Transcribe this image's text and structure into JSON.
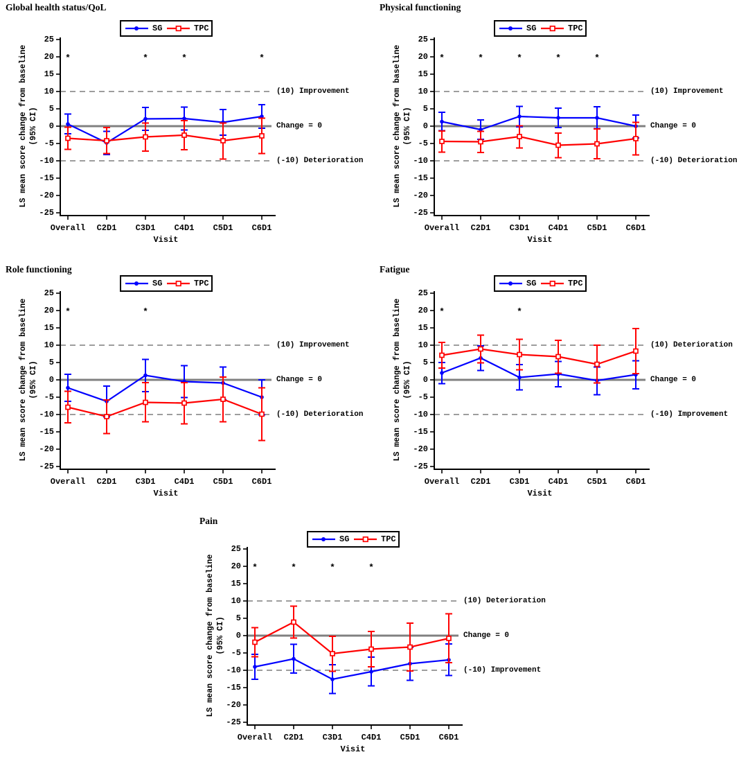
{
  "page": {
    "background": "#ffffff",
    "description_of_visible_content": "Five line charts of LS mean score change from baseline (95% CI) by visit"
  },
  "colors": {
    "sg": "#0000ff",
    "tpc": "#ff0000",
    "zero_line": "#808080",
    "reference_line": "#7d7d7d",
    "axis": "#000000",
    "significance": "#000000",
    "legend_border": "#000000"
  },
  "significance_marker": "*",
  "chart_data": [
    {
      "type": "line",
      "title": "Global health status/QoL",
      "xlabel": "Visit",
      "ylabel": "LS mean score change from baseline",
      "ylabel_line2": "(95% CI)",
      "ylim": [
        -25,
        25
      ],
      "y_ticks": [
        25,
        20,
        15,
        10,
        5,
        0,
        -5,
        -10,
        -15,
        -20,
        -25
      ],
      "categories": [
        "Overall",
        "C2D1",
        "C3D1",
        "C4D1",
        "C5D1",
        "C6D1"
      ],
      "annotations": {
        "upper": "(10) Improvement",
        "zero": "Change = 0",
        "lower": "(-10) Deterioration"
      },
      "reference_lines": {
        "upper_y": 10,
        "zero_y": 0,
        "lower_y": -10
      },
      "significant_at": [
        "Overall",
        "C3D1",
        "C4D1",
        "C6D1"
      ],
      "legend_position": "top-center",
      "series": [
        {
          "name": "SG",
          "color": "#0000ff",
          "marker": "filled-circle",
          "mean": [
            0.6,
            -4.8,
            2.1,
            2.2,
            1.1,
            2.8
          ],
          "ci_lower": [
            -2.2,
            -8.2,
            -1.2,
            -1.1,
            -2.6,
            -0.6
          ],
          "ci_upper": [
            3.5,
            -1.5,
            5.4,
            5.5,
            4.8,
            6.2
          ]
        },
        {
          "name": "TPC",
          "color": "#ff0000",
          "marker": "open-square",
          "mean": [
            -3.5,
            -4.2,
            -3.1,
            -2.6,
            -4.2,
            -2.8
          ],
          "ci_lower": [
            -6.7,
            -7.9,
            -7.2,
            -6.8,
            -9.5,
            -7.9
          ],
          "ci_upper": [
            -0.3,
            -0.4,
            0.9,
            1.6,
            0.9,
            2.3
          ]
        }
      ]
    },
    {
      "type": "line",
      "title": "Physical functioning",
      "xlabel": "Visit",
      "ylabel": "LS mean score change from baseline",
      "ylabel_line2": "(95% CI)",
      "ylim": [
        -25,
        25
      ],
      "y_ticks": [
        25,
        20,
        15,
        10,
        5,
        0,
        -5,
        -10,
        -15,
        -20,
        -25
      ],
      "categories": [
        "Overall",
        "C2D1",
        "C3D1",
        "C4D1",
        "C5D1",
        "C6D1"
      ],
      "annotations": {
        "upper": "(10) Improvement",
        "zero": "Change = 0",
        "lower": "(-10) Deterioration"
      },
      "reference_lines": {
        "upper_y": 10,
        "zero_y": 0,
        "lower_y": -10
      },
      "significant_at": [
        "Overall",
        "C2D1",
        "C3D1",
        "C4D1",
        "C5D1"
      ],
      "legend_position": "top-center",
      "series": [
        {
          "name": "SG",
          "color": "#0000ff",
          "marker": "filled-circle",
          "mean": [
            1.3,
            -1.0,
            2.8,
            2.4,
            2.4,
            0.0
          ],
          "ci_lower": [
            -1.3,
            -3.8,
            -0.2,
            -0.4,
            -0.7,
            -3.4
          ],
          "ci_upper": [
            4.0,
            1.8,
            5.7,
            5.2,
            5.6,
            3.2
          ]
        },
        {
          "name": "TPC",
          "color": "#ff0000",
          "marker": "open-square",
          "mean": [
            -4.4,
            -4.5,
            -3.0,
            -5.5,
            -5.1,
            -3.6
          ],
          "ci_lower": [
            -7.5,
            -7.6,
            -6.3,
            -9.1,
            -9.4,
            -8.3
          ],
          "ci_upper": [
            -1.4,
            -1.5,
            0.1,
            -2.0,
            -0.8,
            1.1
          ]
        }
      ]
    },
    {
      "type": "line",
      "title": "Role functioning",
      "xlabel": "Visit",
      "ylabel": "LS mean score change from baseline",
      "ylabel_line2": "(95% CI)",
      "ylim": [
        -25,
        25
      ],
      "y_ticks": [
        25,
        20,
        15,
        10,
        5,
        0,
        -5,
        -10,
        -15,
        -20,
        -25
      ],
      "categories": [
        "Overall",
        "C2D1",
        "C3D1",
        "C4D1",
        "C5D1",
        "C6D1"
      ],
      "annotations": {
        "upper": "(10) Improvement",
        "zero": "Change = 0",
        "lower": "(-10) Deterioration"
      },
      "reference_lines": {
        "upper_y": 10,
        "zero_y": 0,
        "lower_y": -10
      },
      "significant_at": [
        "Overall",
        "C3D1"
      ],
      "legend_position": "top-center",
      "series": [
        {
          "name": "SG",
          "color": "#0000ff",
          "marker": "filled-circle",
          "mean": [
            -2.3,
            -6.2,
            1.3,
            -0.5,
            -0.9,
            -5.0
          ],
          "ci_lower": [
            -6.2,
            -10.7,
            -3.4,
            -5.1,
            -5.7,
            -10.1
          ],
          "ci_upper": [
            1.6,
            -1.8,
            5.9,
            4.1,
            3.7,
            0.0
          ]
        },
        {
          "name": "TPC",
          "color": "#ff0000",
          "marker": "open-square",
          "mean": [
            -7.9,
            -10.6,
            -6.5,
            -6.7,
            -5.6,
            -9.9
          ],
          "ci_lower": [
            -12.4,
            -15.5,
            -12.1,
            -12.7,
            -12.1,
            -17.5
          ],
          "ci_upper": [
            -3.3,
            -5.8,
            -0.8,
            -0.8,
            0.8,
            -2.3
          ]
        }
      ]
    },
    {
      "type": "line",
      "title": "Fatigue",
      "xlabel": "Visit",
      "ylabel": "LS mean score change from baseline",
      "ylabel_line2": "(95% CI)",
      "ylim": [
        -25,
        25
      ],
      "y_ticks": [
        25,
        20,
        15,
        10,
        5,
        0,
        -5,
        -10,
        -15,
        -20,
        -25
      ],
      "categories": [
        "Overall",
        "C2D1",
        "C3D1",
        "C4D1",
        "C5D1",
        "C6D1"
      ],
      "annotations": {
        "upper": "(10) Deterioration",
        "zero": "Change = 0",
        "lower": "(-10) Improvement"
      },
      "reference_lines": {
        "upper_y": 10,
        "zero_y": 0,
        "lower_y": -10
      },
      "significant_at": [
        "Overall",
        "C3D1"
      ],
      "legend_position": "top-center",
      "series": [
        {
          "name": "SG",
          "color": "#0000ff",
          "marker": "filled-circle",
          "mean": [
            2.0,
            6.3,
            0.7,
            1.7,
            -0.2,
            1.5
          ],
          "ci_lower": [
            -1.1,
            2.7,
            -2.9,
            -2.0,
            -4.3,
            -2.6
          ],
          "ci_upper": [
            5.0,
            9.8,
            4.4,
            5.3,
            3.7,
            5.5
          ]
        },
        {
          "name": "TPC",
          "color": "#ff0000",
          "marker": "open-square",
          "mean": [
            7.1,
            8.9,
            7.3,
            6.7,
            4.5,
            8.3
          ],
          "ci_lower": [
            3.4,
            4.9,
            2.9,
            1.9,
            -0.9,
            1.8
          ],
          "ci_upper": [
            10.8,
            12.9,
            11.7,
            11.4,
            10.0,
            14.8
          ]
        }
      ]
    },
    {
      "type": "line",
      "title": "Pain",
      "xlabel": "Visit",
      "ylabel": "LS mean score change from baseline",
      "ylabel_line2": "(95% CI)",
      "ylim": [
        -25,
        25
      ],
      "y_ticks": [
        25,
        20,
        15,
        10,
        5,
        0,
        -5,
        -10,
        -15,
        -20,
        -25
      ],
      "categories": [
        "Overall",
        "C2D1",
        "C3D1",
        "C4D1",
        "C5D1",
        "C6D1"
      ],
      "annotations": {
        "upper": "(10) Deterioration",
        "zero": "Change = 0",
        "lower": "(-10) Improvement"
      },
      "reference_lines": {
        "upper_y": 10,
        "zero_y": 0,
        "lower_y": -10
      },
      "significant_at": [
        "Overall",
        "C2D1",
        "C3D1",
        "C4D1"
      ],
      "legend_position": "top-center",
      "series": [
        {
          "name": "SG",
          "color": "#0000ff",
          "marker": "filled-circle",
          "mean": [
            -9.0,
            -6.7,
            -12.6,
            -10.4,
            -8.1,
            -7.0
          ],
          "ci_lower": [
            -12.6,
            -10.8,
            -16.7,
            -14.5,
            -12.9,
            -11.5
          ],
          "ci_upper": [
            -5.4,
            -2.5,
            -8.4,
            -6.2,
            -3.4,
            -2.4
          ]
        },
        {
          "name": "TPC",
          "color": "#ff0000",
          "marker": "open-square",
          "mean": [
            -1.9,
            3.9,
            -5.2,
            -3.9,
            -3.3,
            -0.8
          ],
          "ci_lower": [
            -6.1,
            -0.7,
            -10.3,
            -9.0,
            -10.2,
            -7.8
          ],
          "ci_upper": [
            2.3,
            8.5,
            -0.2,
            1.2,
            3.6,
            6.3
          ]
        }
      ]
    }
  ]
}
